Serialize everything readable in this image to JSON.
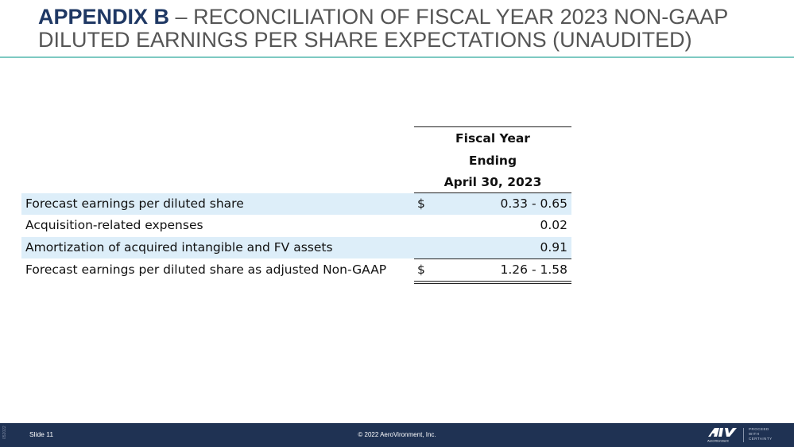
{
  "title": {
    "bold": "APPENDIX B",
    "rest": " – RECONCILIATION OF FISCAL YEAR 2023 NON-GAAP DILUTED EARNINGS PER SHARE EXPECTATIONS (UNAUDITED)"
  },
  "table": {
    "header": [
      "Fiscal Year",
      "Ending",
      "April 30, 2023"
    ],
    "rows": [
      {
        "label": "Forecast earnings per diluted share",
        "currency": "$",
        "value": "0.33 - 0.65"
      },
      {
        "label": "Acquisition-related expenses",
        "currency": "",
        "value": "0.02"
      },
      {
        "label": "Amortization of acquired intangible and FV assets",
        "currency": "",
        "value": "0.91"
      },
      {
        "label": "Forecast earnings per diluted share as adjusted Non-GAAP",
        "currency": "$",
        "value": "1.26 - 1.58"
      }
    ]
  },
  "footer": {
    "code": "052022",
    "slide": "Slide 11",
    "copyright": "© 2022 AeroVironment, Inc.",
    "logo_text": "AeroVironment",
    "tagline": [
      "PROCEED",
      "WITH",
      "CERTAINTY"
    ],
    "background": "#1f3253"
  },
  "colors": {
    "title_bold": "#1f3864",
    "title_text": "#555555",
    "accent_rule": "#7ec9c2",
    "row_shade": "#ddeef9"
  }
}
